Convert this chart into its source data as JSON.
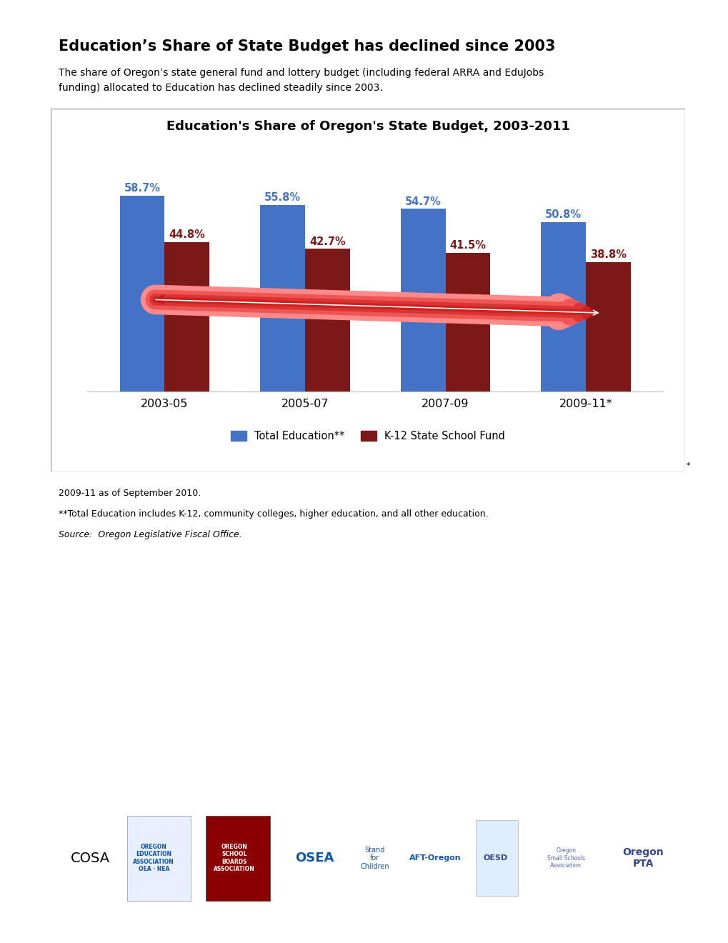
{
  "title_main": "Education’s Share of State Budget has declined since 2003",
  "subtitle": "The share of Oregon’s state general fund and lottery budget (including federal ARRA and EduJobs\nfunding) allocated to Education has declined steadily since 2003.",
  "chart_title": "Education's Share of Oregon's State Budget, 2003-2011",
  "categories": [
    "2003-05",
    "2005-07",
    "2007-09",
    "2009-11*"
  ],
  "blue_values": [
    58.7,
    55.8,
    54.7,
    50.8
  ],
  "red_values": [
    44.8,
    42.7,
    41.5,
    38.8
  ],
  "blue_color": "#4472C4",
  "red_color": "#7B1818",
  "blue_label": "Total Education**",
  "red_label": "K-12 State School Fund",
  "footnote1": "2009-11 as of September 2010.",
  "footnote2": "**Total Education includes K-12, community colleges, higher education, and all other education.",
  "footnote3": "Source:  Oregon Legislative Fiscal Office.",
  "ylim": [
    0,
    65
  ],
  "bar_width": 0.32
}
